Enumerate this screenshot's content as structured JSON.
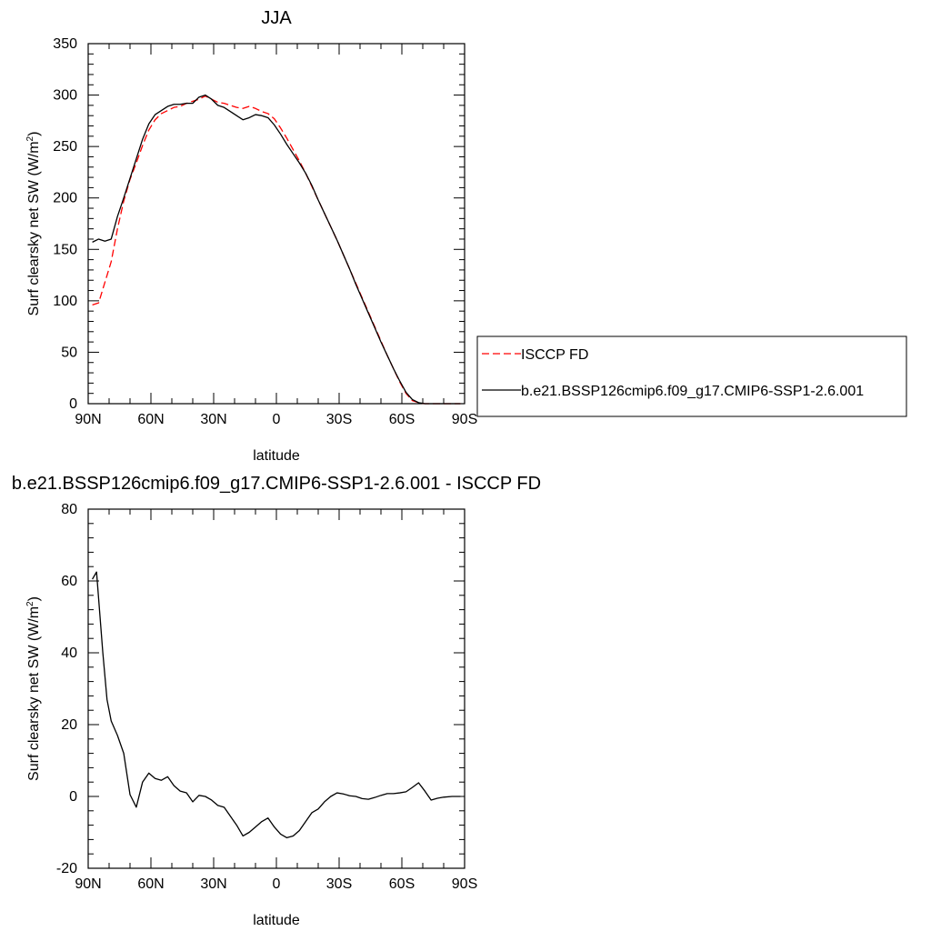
{
  "chart_data": [
    {
      "type": "line",
      "title": "JJA",
      "xlabel": "latitude",
      "ylabel": "Surf clearsky net SW (W/m",
      "ylabel_sup": "2",
      "ylabel_close": ")",
      "xlim": [
        90,
        -90
      ],
      "ylim": [
        0,
        350
      ],
      "x_ticks": [
        90,
        60,
        30,
        0,
        -30,
        -60,
        -90
      ],
      "x_tick_labels": [
        "90N",
        "60N",
        "30N",
        "0",
        "30S",
        "60S",
        "90S"
      ],
      "y_ticks": [
        0,
        50,
        100,
        150,
        200,
        250,
        300,
        350
      ],
      "y_tick_labels": [
        "0",
        "50",
        "100",
        "150",
        "200",
        "250",
        "300",
        "350"
      ],
      "legend_position": "right",
      "grid": false,
      "series": [
        {
          "name": "ISCCP FD",
          "color": "#ff0000",
          "dash": "dashed",
          "points": [
            [
              88,
              96
            ],
            [
              85,
              98
            ],
            [
              82,
              118
            ],
            [
              79,
              138
            ],
            [
              76,
              170
            ],
            [
              73,
              197
            ],
            [
              70,
              218
            ],
            [
              67,
              234
            ],
            [
              64,
              251
            ],
            [
              61,
              266
            ],
            [
              58,
              276
            ],
            [
              55,
              282
            ],
            [
              52,
              285
            ],
            [
              49,
              288
            ],
            [
              46,
              289
            ],
            [
              43,
              292
            ],
            [
              40,
              294
            ],
            [
              37,
              296
            ],
            [
              34,
              299
            ],
            [
              31,
              296
            ],
            [
              28,
              293
            ],
            [
              25,
              292
            ],
            [
              22,
              290
            ],
            [
              19,
              288
            ],
            [
              16,
              287
            ],
            [
              13,
              289
            ],
            [
              10,
              287
            ],
            [
              7,
              284
            ],
            [
              4,
              282
            ],
            [
              1,
              277
            ],
            [
              -2,
              268
            ],
            [
              -5,
              258
            ],
            [
              -8,
              247
            ],
            [
              -11,
              236
            ],
            [
              -14,
              224
            ],
            [
              -17,
              211
            ],
            [
              -20,
              198
            ],
            [
              -23,
              185
            ],
            [
              -26,
              172
            ],
            [
              -29,
              159
            ],
            [
              -32,
              145
            ],
            [
              -35,
              131
            ],
            [
              -38,
              117
            ],
            [
              -41,
              103
            ],
            [
              -44,
              89
            ],
            [
              -47,
              75
            ],
            [
              -50,
              61
            ],
            [
              -53,
              47
            ],
            [
              -56,
              34
            ],
            [
              -59,
              21
            ],
            [
              -62,
              10
            ],
            [
              -65,
              3
            ],
            [
              -68,
              1
            ],
            [
              -71,
              0
            ],
            [
              -74,
              0
            ],
            [
              -77,
              0
            ],
            [
              -80,
              0
            ],
            [
              -84,
              0
            ],
            [
              -88,
              0
            ]
          ]
        },
        {
          "name": "b.e21.BSSP126cmip6.f09_g17.CMIP6-SSP1-2.6.001",
          "color": "#000000",
          "dash": "solid",
          "points": [
            [
              88,
              157
            ],
            [
              85,
              160
            ],
            [
              82,
              158
            ],
            [
              79,
              160
            ],
            [
              76,
              182
            ],
            [
              73,
              200
            ],
            [
              70,
              219
            ],
            [
              67,
              238
            ],
            [
              64,
              257
            ],
            [
              61,
              272
            ],
            [
              58,
              281
            ],
            [
              55,
              285
            ],
            [
              52,
              289
            ],
            [
              49,
              291
            ],
            [
              46,
              291
            ],
            [
              43,
              292
            ],
            [
              40,
              292
            ],
            [
              37,
              298
            ],
            [
              34,
              300
            ],
            [
              31,
              296
            ],
            [
              28,
              290
            ],
            [
              25,
              288
            ],
            [
              22,
              284
            ],
            [
              19,
              280
            ],
            [
              16,
              276
            ],
            [
              13,
              278
            ],
            [
              10,
              281
            ],
            [
              7,
              280
            ],
            [
              4,
              278
            ],
            [
              1,
              271
            ],
            [
              -2,
              262
            ],
            [
              -5,
              252
            ],
            [
              -8,
              243
            ],
            [
              -11,
              234
            ],
            [
              -14,
              224
            ],
            [
              -17,
              212
            ],
            [
              -20,
              198
            ],
            [
              -23,
              185
            ],
            [
              -26,
              172
            ],
            [
              -29,
              159
            ],
            [
              -32,
              145
            ],
            [
              -35,
              131
            ],
            [
              -38,
              116
            ],
            [
              -41,
              102
            ],
            [
              -44,
              88
            ],
            [
              -47,
              74
            ],
            [
              -50,
              60
            ],
            [
              -53,
              47
            ],
            [
              -56,
              34
            ],
            [
              -59,
              22
            ],
            [
              -62,
              11
            ],
            [
              -65,
              4
            ],
            [
              -68,
              1
            ],
            [
              -71,
              0
            ],
            [
              -74,
              0
            ],
            [
              -77,
              0
            ],
            [
              -80,
              0
            ],
            [
              -84,
              0
            ],
            [
              -88,
              0
            ]
          ]
        }
      ]
    },
    {
      "type": "line",
      "title": "b.e21.BSSP126cmip6.f09_g17.CMIP6-SSP1-2.6.001 - ISCCP FD",
      "xlabel": "latitude",
      "ylabel": "Surf clearsky net SW (W/m",
      "ylabel_sup": "2",
      "ylabel_close": ")",
      "xlim": [
        90,
        -90
      ],
      "ylim": [
        -20,
        80
      ],
      "x_ticks": [
        90,
        60,
        30,
        0,
        -30,
        -60,
        -90
      ],
      "x_tick_labels": [
        "90N",
        "60N",
        "30N",
        "0",
        "30S",
        "60S",
        "90S"
      ],
      "y_ticks": [
        -20,
        0,
        20,
        40,
        60,
        80
      ],
      "y_tick_labels": [
        "-20",
        "0",
        "20",
        "40",
        "60",
        "80"
      ],
      "grid": false,
      "series": [
        {
          "color": "#000000",
          "dash": "solid",
          "points": [
            [
              88,
              60.5
            ],
            [
              86,
              62.5
            ],
            [
              83,
              40
            ],
            [
              81,
              27
            ],
            [
              79,
              21
            ],
            [
              76,
              17
            ],
            [
              73,
              12
            ],
            [
              70,
              0.5
            ],
            [
              67,
              -3
            ],
            [
              64,
              4
            ],
            [
              61,
              6.5
            ],
            [
              58,
              5
            ],
            [
              55,
              4.5
            ],
            [
              52,
              5.5
            ],
            [
              49,
              3
            ],
            [
              46,
              1.5
            ],
            [
              43,
              1
            ],
            [
              40,
              -1.5
            ],
            [
              37,
              0.3
            ],
            [
              34,
              0
            ],
            [
              31,
              -1
            ],
            [
              28,
              -2.5
            ],
            [
              25,
              -3
            ],
            [
              22,
              -5.5
            ],
            [
              19,
              -8
            ],
            [
              16,
              -11
            ],
            [
              13,
              -10
            ],
            [
              10,
              -8.5
            ],
            [
              7,
              -7
            ],
            [
              4,
              -6
            ],
            [
              1,
              -8.5
            ],
            [
              -2,
              -10.5
            ],
            [
              -5,
              -11.5
            ],
            [
              -8,
              -11
            ],
            [
              -11,
              -9.5
            ],
            [
              -14,
              -7
            ],
            [
              -17,
              -4.5
            ],
            [
              -20,
              -3.5
            ],
            [
              -23,
              -1.5
            ],
            [
              -26,
              0
            ],
            [
              -29,
              1
            ],
            [
              -32,
              0.7
            ],
            [
              -35,
              0.2
            ],
            [
              -38,
              0
            ],
            [
              -41,
              -0.6
            ],
            [
              -44,
              -0.8
            ],
            [
              -47,
              -0.3
            ],
            [
              -50,
              0.3
            ],
            [
              -53,
              0.8
            ],
            [
              -56,
              0.8
            ],
            [
              -59,
              1
            ],
            [
              -62,
              1.3
            ],
            [
              -65,
              2.5
            ],
            [
              -68,
              3.8
            ],
            [
              -71,
              1.5
            ],
            [
              -74,
              -1
            ],
            [
              -77,
              -0.5
            ],
            [
              -80,
              -0.2
            ],
            [
              -84,
              0
            ],
            [
              -88,
              0
            ]
          ]
        }
      ]
    }
  ]
}
